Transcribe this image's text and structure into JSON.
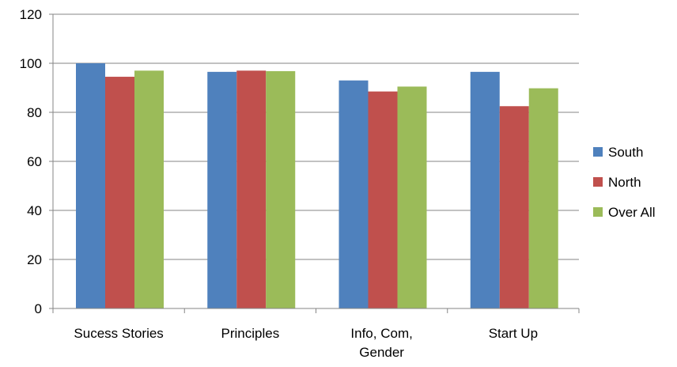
{
  "chart_data": {
    "type": "bar",
    "categories": [
      "Sucess Stories",
      "Principles",
      "Info, Com, Gender",
      "Start Up"
    ],
    "category_lines": [
      [
        "Sucess Stories"
      ],
      [
        "Principles"
      ],
      [
        "Info, Com,",
        "Gender"
      ],
      [
        "Start Up"
      ]
    ],
    "series": [
      {
        "name": "South",
        "values": [
          100,
          96.5,
          93,
          96.5
        ],
        "color": "#4f81bd"
      },
      {
        "name": "North",
        "values": [
          94.5,
          97,
          88.5,
          82.5
        ],
        "color": "#c0504d"
      },
      {
        "name": "Over All",
        "values": [
          97,
          96.8,
          90.5,
          89.8
        ],
        "color": "#9bbb59"
      }
    ],
    "ylim": [
      0,
      120
    ],
    "yticks": [
      0,
      20,
      40,
      60,
      80,
      100,
      120
    ],
    "grid": true,
    "legend_position": "right",
    "title": "",
    "xlabel": "",
    "ylabel": ""
  }
}
